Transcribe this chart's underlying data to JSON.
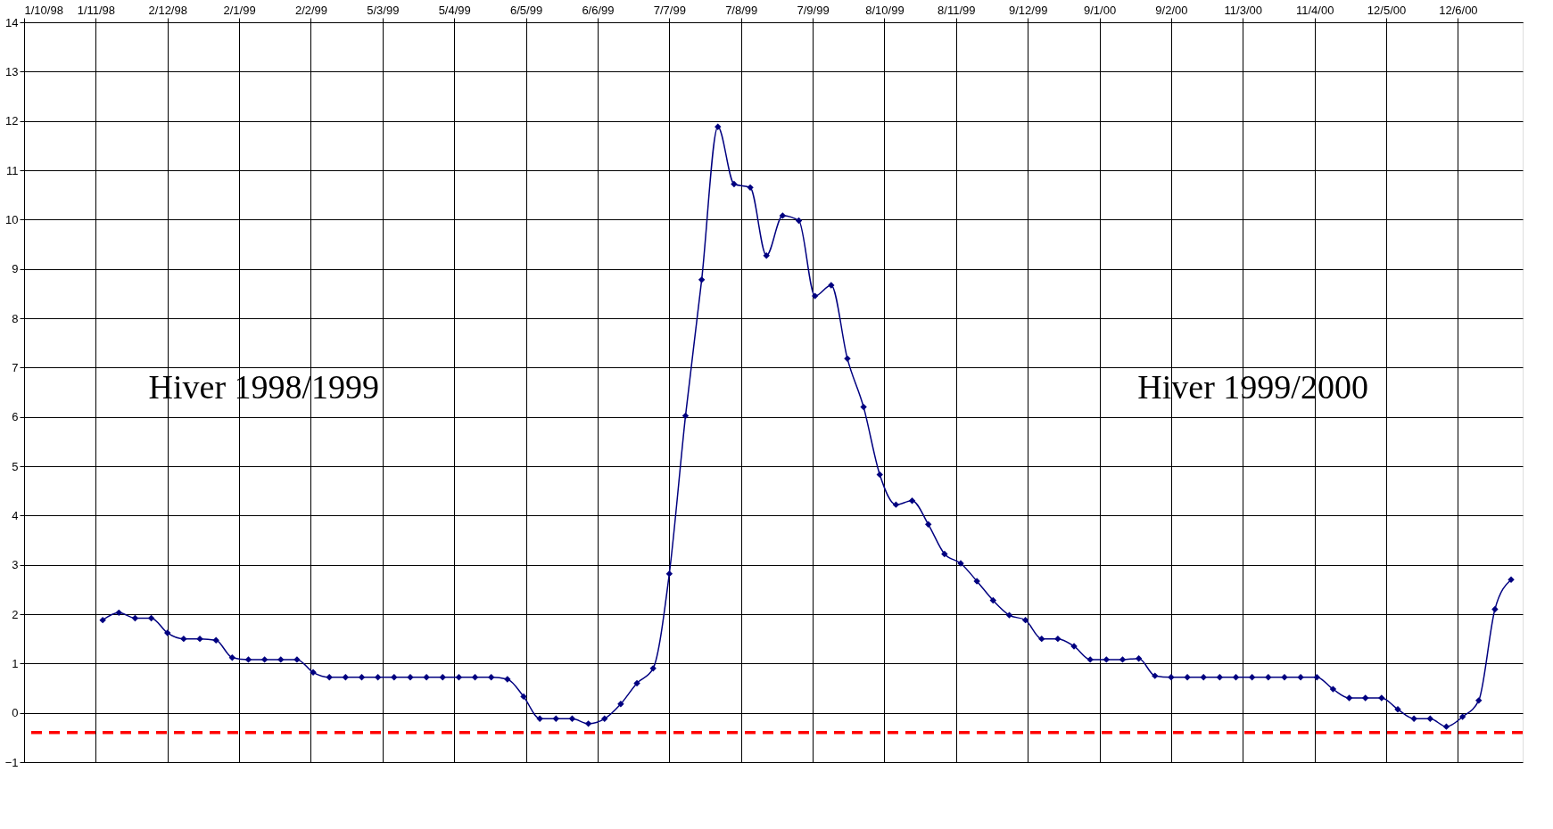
{
  "chart_data": {
    "type": "line",
    "x": [
      "1998-11-04",
      "1998-11-11",
      "1998-11-18",
      "1998-11-25",
      "1998-12-02",
      "1998-12-09",
      "1998-12-16",
      "1998-12-23",
      "1998-12-30",
      "1999-01-06",
      "1999-01-13",
      "1999-01-20",
      "1999-01-27",
      "1999-02-03",
      "1999-02-10",
      "1999-02-17",
      "1999-02-24",
      "1999-03-03",
      "1999-03-10",
      "1999-03-17",
      "1999-03-24",
      "1999-03-31",
      "1999-04-07",
      "1999-04-14",
      "1999-04-21",
      "1999-04-28",
      "1999-05-05",
      "1999-05-12",
      "1999-05-19",
      "1999-05-26",
      "1999-06-02",
      "1999-06-09",
      "1999-06-16",
      "1999-06-23",
      "1999-06-30",
      "1999-07-07",
      "1999-07-14",
      "1999-07-21",
      "1999-07-28",
      "1999-08-04",
      "1999-08-11",
      "1999-08-18",
      "1999-08-25",
      "1999-09-01",
      "1999-09-08",
      "1999-09-15",
      "1999-09-22",
      "1999-09-29",
      "1999-10-06",
      "1999-10-13",
      "1999-10-20",
      "1999-10-27",
      "1999-11-03",
      "1999-11-10",
      "1999-11-17",
      "1999-11-24",
      "1999-12-01",
      "1999-12-08",
      "1999-12-15",
      "1999-12-22",
      "1999-12-29",
      "2000-01-05",
      "2000-01-12",
      "2000-01-19",
      "2000-01-26",
      "2000-02-02",
      "2000-02-09",
      "2000-02-16",
      "2000-02-23",
      "2000-03-01",
      "2000-03-08",
      "2000-03-15",
      "2000-03-22",
      "2000-03-29",
      "2000-04-05",
      "2000-04-12",
      "2000-04-19",
      "2000-04-26",
      "2000-05-03",
      "2000-05-10",
      "2000-05-17",
      "2000-05-24",
      "2000-05-31",
      "2000-06-07",
      "2000-06-14",
      "2000-06-21",
      "2000-06-28",
      "2000-07-05"
    ],
    "series": [
      {
        "color": "#000080",
        "values": [
          1.88,
          2.03,
          1.92,
          1.92,
          1.62,
          1.5,
          1.5,
          1.47,
          1.12,
          1.08,
          1.08,
          1.08,
          1.08,
          0.82,
          0.72,
          0.72,
          0.72,
          0.72,
          0.72,
          0.72,
          0.72,
          0.72,
          0.72,
          0.72,
          0.72,
          0.68,
          0.33,
          -0.12,
          -0.12,
          -0.12,
          -0.22,
          -0.12,
          0.18,
          0.6,
          0.9,
          2.82,
          6.02,
          8.78,
          11.88,
          10.72,
          10.65,
          9.27,
          10.08,
          9.98,
          8.45,
          8.67,
          7.18,
          6.2,
          4.83,
          4.22,
          4.3,
          3.82,
          3.22,
          3.03,
          2.67,
          2.28,
          1.98,
          1.88,
          1.5,
          1.5,
          1.35,
          1.08,
          1.08,
          1.08,
          1.1,
          0.75,
          0.72,
          0.72,
          0.72,
          0.72,
          0.72,
          0.72,
          0.72,
          0.72,
          0.72,
          0.72,
          0.48,
          0.3,
          0.3,
          0.3,
          0.07,
          -0.12,
          -0.12,
          -0.28,
          -0.08,
          0.25,
          2.1,
          2.7
        ]
      }
    ],
    "xlim": [
      "1998-10-01",
      "2000-07-10"
    ],
    "xticks": [
      {
        "value": "1998-10-01",
        "label": "1/10/98"
      },
      {
        "value": "1998-11-01",
        "label": "1/11/98"
      },
      {
        "value": "1998-12-02",
        "label": "2/12/98"
      },
      {
        "value": "1999-01-02",
        "label": "2/1/99"
      },
      {
        "value": "1999-02-02",
        "label": "2/2/99"
      },
      {
        "value": "1999-03-05",
        "label": "5/3/99"
      },
      {
        "value": "1999-04-05",
        "label": "5/4/99"
      },
      {
        "value": "1999-05-06",
        "label": "6/5/99"
      },
      {
        "value": "1999-06-06",
        "label": "6/6/99"
      },
      {
        "value": "1999-07-07",
        "label": "7/7/99"
      },
      {
        "value": "1999-08-07",
        "label": "7/8/99"
      },
      {
        "value": "1999-09-07",
        "label": "7/9/99"
      },
      {
        "value": "1999-10-08",
        "label": "8/10/99"
      },
      {
        "value": "1999-11-08",
        "label": "8/11/99"
      },
      {
        "value": "1999-12-09",
        "label": "9/12/99"
      },
      {
        "value": "2000-01-09",
        "label": "9/1/00"
      },
      {
        "value": "2000-02-09",
        "label": "9/2/00"
      },
      {
        "value": "2000-03-11",
        "label": "11/3/00"
      },
      {
        "value": "2000-04-11",
        "label": "11/4/00"
      },
      {
        "value": "2000-05-12",
        "label": "12/5/00"
      },
      {
        "value": "2000-06-12",
        "label": "12/6/00"
      }
    ],
    "ylim": [
      -1,
      14
    ],
    "yticks": [
      -1,
      0,
      1,
      2,
      3,
      4,
      5,
      6,
      7,
      8,
      9,
      10,
      11,
      12,
      13,
      14
    ],
    "ref_lines": [
      {
        "axis": "y",
        "value": -0.4,
        "color": "#ff0000",
        "line_style": "dashed"
      }
    ],
    "annotations": [
      "Hiver 1998/1999",
      "Hiver 1999/2000"
    ],
    "grid": true,
    "marker": "diamond",
    "line_style": "solid"
  }
}
